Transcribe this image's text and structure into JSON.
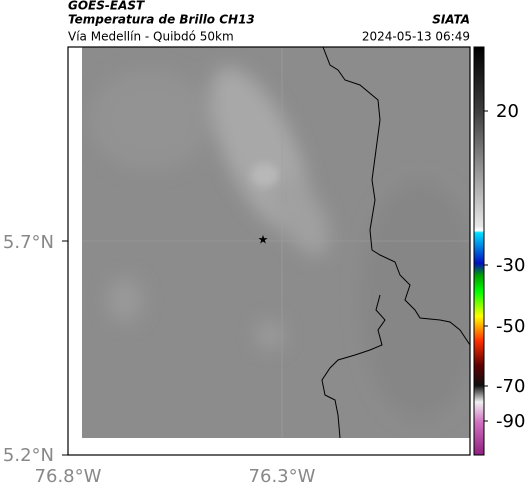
{
  "header": {
    "source": "GOES-EAST",
    "title": "Temperatura de Brillo CH13",
    "credit": "SIATA",
    "subtitle": "Vía Medellín - Quibdó 50km",
    "timestamp": "2024-05-13 06:49"
  },
  "map": {
    "lat_labels": [
      "5.7°N",
      "5.2°N"
    ],
    "lon_labels": [
      "76.8°W",
      "76.3°W"
    ]
  },
  "colorbar": {
    "ticks": [
      20,
      -30,
      -50,
      -70,
      -90
    ]
  }
}
